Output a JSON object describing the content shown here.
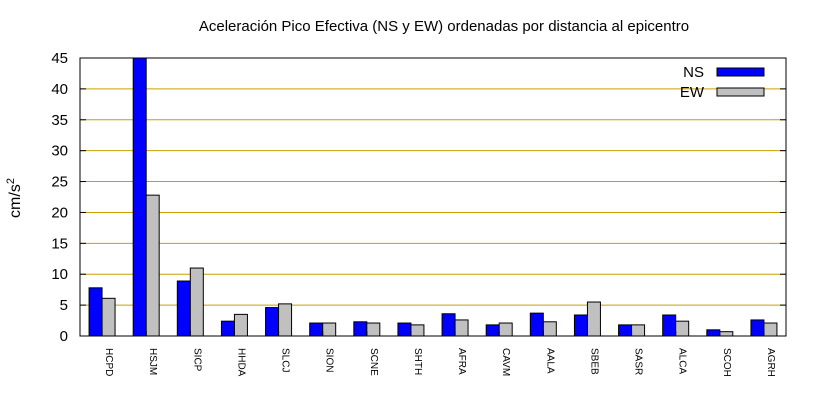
{
  "chart_data": {
    "type": "bar",
    "title": "Aceleración Pico Efectiva (NS y EW) ordenadas por distancia al epicentro",
    "ylabel": "cm/s",
    "ylabel_superscript": "2",
    "xlabel": "",
    "ylim": [
      0,
      45
    ],
    "yticks": [
      0,
      5,
      10,
      15,
      20,
      25,
      30,
      35,
      40,
      45
    ],
    "grid": true,
    "legend_position": "top-right",
    "categories": [
      "HCPD",
      "HSJM",
      "SICP",
      "HHDA",
      "SLCJ",
      "SION",
      "SCNE",
      "SHTH",
      "AFRA",
      "CAVM",
      "AALA",
      "SBEB",
      "SASR",
      "ALCA",
      "SCOH",
      "AGRH"
    ],
    "series": [
      {
        "name": "NS",
        "color": "#0000ff",
        "values": [
          7.8,
          45.0,
          8.9,
          2.4,
          4.6,
          2.1,
          2.3,
          2.1,
          3.6,
          1.8,
          3.7,
          3.4,
          1.8,
          3.4,
          1.0,
          2.6
        ]
      },
      {
        "name": "EW",
        "color": "#c0c0c0",
        "values": [
          6.1,
          22.8,
          11.0,
          3.5,
          5.2,
          2.1,
          2.1,
          1.8,
          2.6,
          2.1,
          2.3,
          5.5,
          1.8,
          2.4,
          0.7,
          2.1
        ]
      }
    ],
    "grid_color": "#c8a000"
  }
}
